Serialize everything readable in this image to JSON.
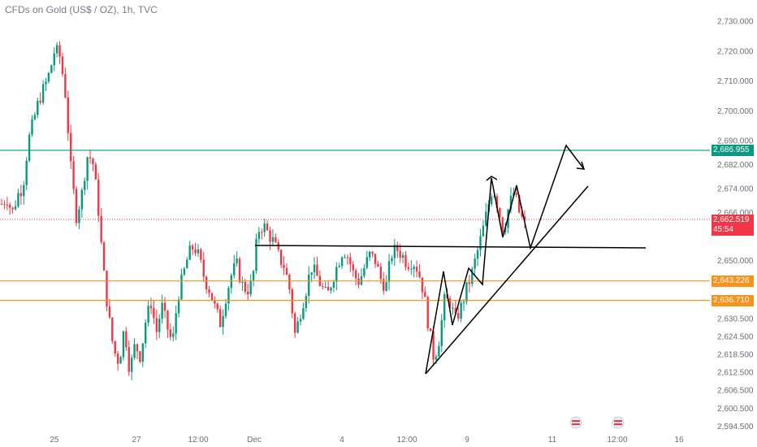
{
  "chart_data": {
    "type": "candlestick",
    "title": "CFDs on Gold (US$ / OZ), 1h, TVC",
    "ylim": [
      2592,
      2734
    ],
    "y_ticks": [
      2730,
      2720,
      2710,
      2700,
      2690,
      2682,
      2674,
      2666,
      2650,
      2630.5,
      2624.5,
      2618.5,
      2612.5,
      2606.5,
      2600.5,
      2594.5
    ],
    "y_tick_labels": [
      "2,730.000",
      "2,720.000",
      "2,710.000",
      "2,700.000",
      "2,690.000",
      "2,682.000",
      "2,674.000",
      "2,666.000",
      "2,650.000",
      "2,630.500",
      "2,624.500",
      "2,618.500",
      "2,612.500",
      "2,606.500",
      "2,600.500",
      "2,594.500"
    ],
    "x_tick_labels": [
      "25",
      "27",
      "12:00",
      "Dec",
      "4",
      "12:00",
      "9",
      "11",
      "12:00",
      "16"
    ],
    "horizontal_levels": [
      {
        "price": 2686.955,
        "label": "2,686.955",
        "color": "#089981"
      },
      {
        "price": 2643.226,
        "label": "2,643.226",
        "color": "#f7931a"
      },
      {
        "price": 2636.71,
        "label": "2,636.710",
        "color": "#f7931a"
      }
    ],
    "current_price": {
      "label": "2,662.519",
      "countdown": "45:54",
      "color": "#f23645"
    },
    "series_points": [
      2669,
      2671,
      2666,
      2672,
      2675,
      2690,
      2697,
      2704,
      2708,
      2713,
      2721,
      2718,
      2705,
      2680,
      2665,
      2672,
      2685,
      2684,
      2670,
      2648,
      2632,
      2620,
      2616,
      2628,
      2613,
      2622,
      2618,
      2630,
      2636,
      2626,
      2635,
      2628,
      2622,
      2638,
      2645,
      2652,
      2655,
      2651,
      2644,
      2640,
      2634,
      2629,
      2638,
      2645,
      2649,
      2642,
      2640,
      2643,
      2660,
      2662,
      2659,
      2656,
      2651,
      2648,
      2640,
      2625,
      2633,
      2640,
      2648,
      2645,
      2641,
      2638,
      2644,
      2649,
      2654,
      2651,
      2645,
      2643,
      2648,
      2652,
      2650,
      2644,
      2641,
      2652,
      2654,
      2652,
      2649,
      2650,
      2647,
      2640,
      2628,
      2617,
      2624,
      2637,
      2636,
      2630,
      2634,
      2640,
      2645,
      2652,
      2659,
      2667,
      2675,
      2668,
      2660,
      2668,
      2673,
      2666,
      2662
    ]
  },
  "badges": {
    "current_time": "45:54"
  },
  "colors": {
    "up": "#089981",
    "down": "#f23645",
    "grid": "#f0f3fa",
    "text": "#6a6d78"
  }
}
